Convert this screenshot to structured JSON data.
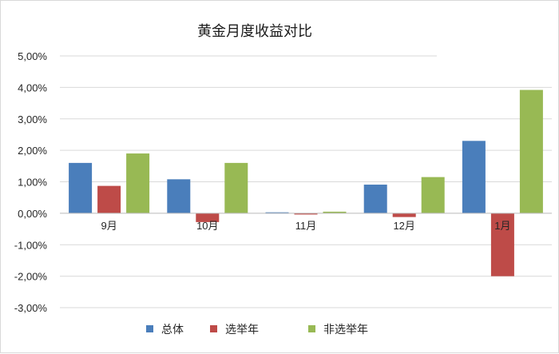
{
  "chart_data": {
    "type": "bar",
    "title": "黄金月度收益对比",
    "categories": [
      "9月",
      "10月",
      "11月",
      "12月",
      "1月"
    ],
    "series": [
      {
        "name": "总体",
        "color": "#4a7ebb",
        "values": [
          1.6,
          1.08,
          0.03,
          0.91,
          2.3
        ]
      },
      {
        "name": "选举年",
        "color": "#be4b48",
        "values": [
          0.87,
          -0.28,
          -0.04,
          -0.12,
          -2.0
        ]
      },
      {
        "name": "非选举年",
        "color": "#98b954",
        "values": [
          1.9,
          1.6,
          0.05,
          1.15,
          3.92
        ]
      }
    ],
    "ylim": [
      -3,
      5
    ],
    "yticks": [
      "5,00%",
      "4,00%",
      "3,00%",
      "2,00%",
      "1,00%",
      "0,00%",
      "-1,00%",
      "-2,00%",
      "-3,00%"
    ],
    "grid": true,
    "legend_position": "bottom",
    "xlabel": "",
    "ylabel": ""
  }
}
